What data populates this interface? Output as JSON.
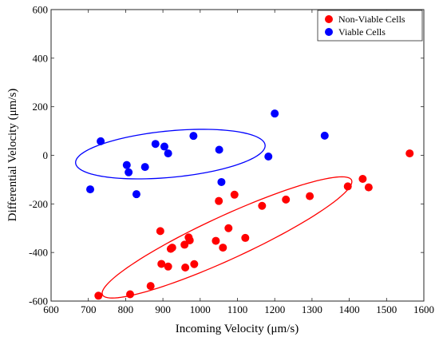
{
  "chart_data": {
    "type": "scatter",
    "xlabel": "Incoming Velocity (μm/s)",
    "ylabel": "Differential Velocity (μm/s)",
    "xlim": [
      600,
      1600
    ],
    "ylim": [
      -600,
      600
    ],
    "x_ticks": [
      600,
      700,
      800,
      900,
      1000,
      1100,
      1200,
      1300,
      1400,
      1500,
      1600
    ],
    "y_ticks": [
      600,
      400,
      200,
      0,
      -200,
      -400,
      -600
    ],
    "grid": false,
    "legend_position": "top-right",
    "series": [
      {
        "name": "Non-Viable Cells",
        "color": "#ff0000",
        "points": [
          [
            727,
            -578
          ],
          [
            812,
            -572
          ],
          [
            867,
            -538
          ],
          [
            893,
            -312
          ],
          [
            896,
            -447
          ],
          [
            914,
            -458
          ],
          [
            921,
            -385
          ],
          [
            925,
            -380
          ],
          [
            958,
            -368
          ],
          [
            960,
            -462
          ],
          [
            969,
            -338
          ],
          [
            972,
            -350
          ],
          [
            984,
            -448
          ],
          [
            1042,
            -352
          ],
          [
            1050,
            -188
          ],
          [
            1061,
            -380
          ],
          [
            1076,
            -300
          ],
          [
            1092,
            -162
          ],
          [
            1121,
            -340
          ],
          [
            1166,
            -208
          ],
          [
            1230,
            -182
          ],
          [
            1294,
            -168
          ],
          [
            1396,
            -128
          ],
          [
            1436,
            -97
          ],
          [
            1452,
            -132
          ],
          [
            1562,
            8
          ]
        ]
      },
      {
        "name": "Viable Cells",
        "color": "#0000ff",
        "points": [
          [
            705,
            -140
          ],
          [
            733,
            58
          ],
          [
            803,
            -40
          ],
          [
            808,
            -70
          ],
          [
            829,
            -160
          ],
          [
            852,
            -48
          ],
          [
            880,
            47
          ],
          [
            904,
            36
          ],
          [
            914,
            8
          ],
          [
            982,
            80
          ],
          [
            1051,
            23
          ],
          [
            1057,
            -110
          ],
          [
            1183,
            -5
          ],
          [
            1200,
            172
          ],
          [
            1334,
            81
          ]
        ]
      }
    ],
    "ellipses": [
      {
        "series": "Non-Viable Cells",
        "color": "#ff0000",
        "center": [
          1072,
          -338
        ],
        "rx": 410,
        "ry": 80,
        "angle_deg": 36
      },
      {
        "series": "Viable Cells",
        "color": "#0000ff",
        "center": [
          920,
          5
        ],
        "rx": 257,
        "ry": 95,
        "angle_deg": 9
      }
    ]
  }
}
